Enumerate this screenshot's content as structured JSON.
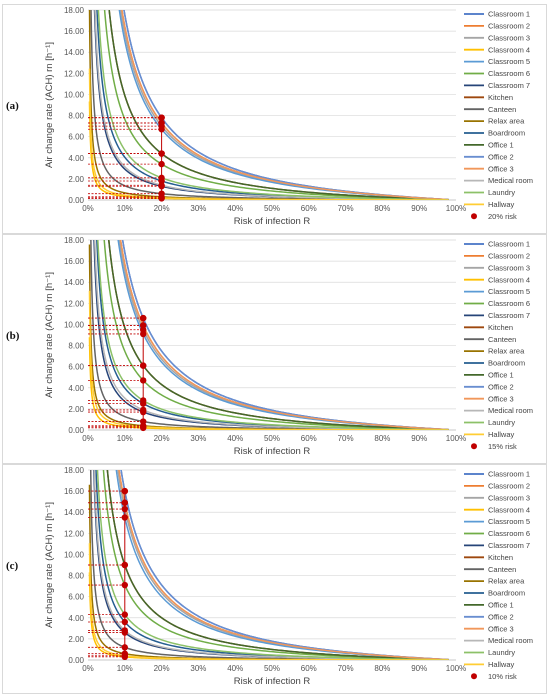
{
  "chart_data": [
    {
      "type": "line",
      "panel_label": "(a)",
      "xlabel": "Risk of infection R",
      "ylabel": "Air change rate (ACH) rn [h⁻¹]",
      "xlim": [
        0,
        100
      ],
      "ylim": [
        0,
        18
      ],
      "x_ticks": [
        "0%",
        "10%",
        "20%",
        "30%",
        "40%",
        "50%",
        "60%",
        "70%",
        "80%",
        "90%",
        "100%"
      ],
      "y_ticks": [
        "0.00",
        "2.00",
        "4.00",
        "6.00",
        "8.00",
        "10.00",
        "12.00",
        "14.00",
        "16.00",
        "18.00"
      ],
      "risk_level": 20,
      "risk_label": "20% risk",
      "series": [
        {
          "name": "Classroom 1",
          "color": "#4472c4",
          "value_at_risk": 7.8
        },
        {
          "name": "Classroom 2",
          "color": "#ed7d31",
          "value_at_risk": 7.3
        },
        {
          "name": "Classroom 3",
          "color": "#a5a5a5",
          "value_at_risk": 7.0
        },
        {
          "name": "Classroom 4",
          "color": "#ffc000",
          "value_at_risk": 0.15
        },
        {
          "name": "Classroom 5",
          "color": "#5b9bd5",
          "value_at_risk": 6.7
        },
        {
          "name": "Classroom 6",
          "color": "#70ad47",
          "value_at_risk": 3.4
        },
        {
          "name": "Classroom 7",
          "color": "#264478",
          "value_at_risk": 1.3
        },
        {
          "name": "Kitchen",
          "color": "#9e480e",
          "value_at_risk": 4.4
        },
        {
          "name": "Canteen",
          "color": "#636363",
          "value_at_risk": 0.6
        },
        {
          "name": "Relax area",
          "color": "#997300",
          "value_at_risk": 0.3
        },
        {
          "name": "Boardroom",
          "color": "#255e91",
          "value_at_risk": 1.8
        },
        {
          "name": "Office 1",
          "color": "#43682b",
          "value_at_risk": 4.4
        },
        {
          "name": "Office 2",
          "color": "#698ed0",
          "value_at_risk": 7.8
        },
        {
          "name": "Office 3",
          "color": "#f1975a",
          "value_at_risk": 7.3
        },
        {
          "name": "Medical room",
          "color": "#b7b7b7",
          "value_at_risk": 1.4
        },
        {
          "name": "Laundry",
          "color": "#8cc168",
          "value_at_risk": 2.1
        },
        {
          "name": "Hallway",
          "color": "#ffcd33",
          "value_at_risk": 0.2
        }
      ]
    },
    {
      "type": "line",
      "panel_label": "(b)",
      "xlabel": "Risk of infection R",
      "ylabel": "Air change rate (ACH) rn [h⁻¹]",
      "xlim": [
        0,
        100
      ],
      "ylim": [
        0,
        18
      ],
      "x_ticks": [
        "0%",
        "10%",
        "20%",
        "30%",
        "40%",
        "50%",
        "60%",
        "70%",
        "80%",
        "90%",
        "100%"
      ],
      "y_ticks": [
        "0.00",
        "2.00",
        "4.00",
        "6.00",
        "8.00",
        "10.00",
        "12.00",
        "14.00",
        "16.00",
        "18.00"
      ],
      "risk_level": 15,
      "risk_label": "15% risk",
      "series": [
        {
          "name": "Classroom 1",
          "color": "#4472c4",
          "value_at_risk": 10.6
        },
        {
          "name": "Classroom 2",
          "color": "#ed7d31",
          "value_at_risk": 9.9
        },
        {
          "name": "Classroom 3",
          "color": "#a5a5a5",
          "value_at_risk": 9.5
        },
        {
          "name": "Classroom 4",
          "color": "#ffc000",
          "value_at_risk": 0.2
        },
        {
          "name": "Classroom 5",
          "color": "#5b9bd5",
          "value_at_risk": 9.1
        },
        {
          "name": "Classroom 6",
          "color": "#70ad47",
          "value_at_risk": 4.7
        },
        {
          "name": "Classroom 7",
          "color": "#264478",
          "value_at_risk": 1.7
        },
        {
          "name": "Kitchen",
          "color": "#9e480e",
          "value_at_risk": 6.1
        },
        {
          "name": "Canteen",
          "color": "#636363",
          "value_at_risk": 0.8
        },
        {
          "name": "Relax area",
          "color": "#997300",
          "value_at_risk": 0.4
        },
        {
          "name": "Boardroom",
          "color": "#255e91",
          "value_at_risk": 2.5
        },
        {
          "name": "Office 1",
          "color": "#43682b",
          "value_at_risk": 6.1
        },
        {
          "name": "Office 2",
          "color": "#698ed0",
          "value_at_risk": 10.6
        },
        {
          "name": "Office 3",
          "color": "#f1975a",
          "value_at_risk": 9.9
        },
        {
          "name": "Medical room",
          "color": "#b7b7b7",
          "value_at_risk": 1.9
        },
        {
          "name": "Laundry",
          "color": "#8cc168",
          "value_at_risk": 2.8
        },
        {
          "name": "Hallway",
          "color": "#ffcd33",
          "value_at_risk": 0.3
        }
      ]
    },
    {
      "type": "line",
      "panel_label": "(c)",
      "xlabel": "Risk of infection R",
      "ylabel": "Air change rate (ACH) rn [h⁻¹]",
      "xlim": [
        0,
        100
      ],
      "ylim": [
        0,
        18
      ],
      "x_ticks": [
        "0%",
        "10%",
        "20%",
        "30%",
        "40%",
        "50%",
        "60%",
        "70%",
        "80%",
        "90%",
        "100%"
      ],
      "y_ticks": [
        "0.00",
        "2.00",
        "4.00",
        "6.00",
        "8.00",
        "10.00",
        "12.00",
        "14.00",
        "16.00",
        "18.00"
      ],
      "risk_level": 10,
      "risk_label": "10% risk",
      "series": [
        {
          "name": "Classroom 1",
          "color": "#4472c4",
          "value_at_risk": 16.0
        },
        {
          "name": "Classroom 2",
          "color": "#ed7d31",
          "value_at_risk": 14.9
        },
        {
          "name": "Classroom 3",
          "color": "#a5a5a5",
          "value_at_risk": 14.3
        },
        {
          "name": "Classroom 4",
          "color": "#ffc000",
          "value_at_risk": 0.3
        },
        {
          "name": "Classroom 5",
          "color": "#5b9bd5",
          "value_at_risk": 13.5
        },
        {
          "name": "Classroom 6",
          "color": "#70ad47",
          "value_at_risk": 7.1
        },
        {
          "name": "Classroom 7",
          "color": "#264478",
          "value_at_risk": 2.6
        },
        {
          "name": "Kitchen",
          "color": "#9e480e",
          "value_at_risk": 9.0
        },
        {
          "name": "Canteen",
          "color": "#636363",
          "value_at_risk": 1.2
        },
        {
          "name": "Relax area",
          "color": "#997300",
          "value_at_risk": 0.6
        },
        {
          "name": "Boardroom",
          "color": "#255e91",
          "value_at_risk": 3.6
        },
        {
          "name": "Office 1",
          "color": "#43682b",
          "value_at_risk": 9.0
        },
        {
          "name": "Office 2",
          "color": "#698ed0",
          "value_at_risk": 16.0
        },
        {
          "name": "Office 3",
          "color": "#f1975a",
          "value_at_risk": 14.9
        },
        {
          "name": "Medical room",
          "color": "#b7b7b7",
          "value_at_risk": 2.8
        },
        {
          "name": "Laundry",
          "color": "#8cc168",
          "value_at_risk": 4.3
        },
        {
          "name": "Hallway",
          "color": "#ffcd33",
          "value_at_risk": 0.4
        }
      ]
    }
  ],
  "marker_color": "#c00000",
  "frame_color": "#d9d9d9"
}
